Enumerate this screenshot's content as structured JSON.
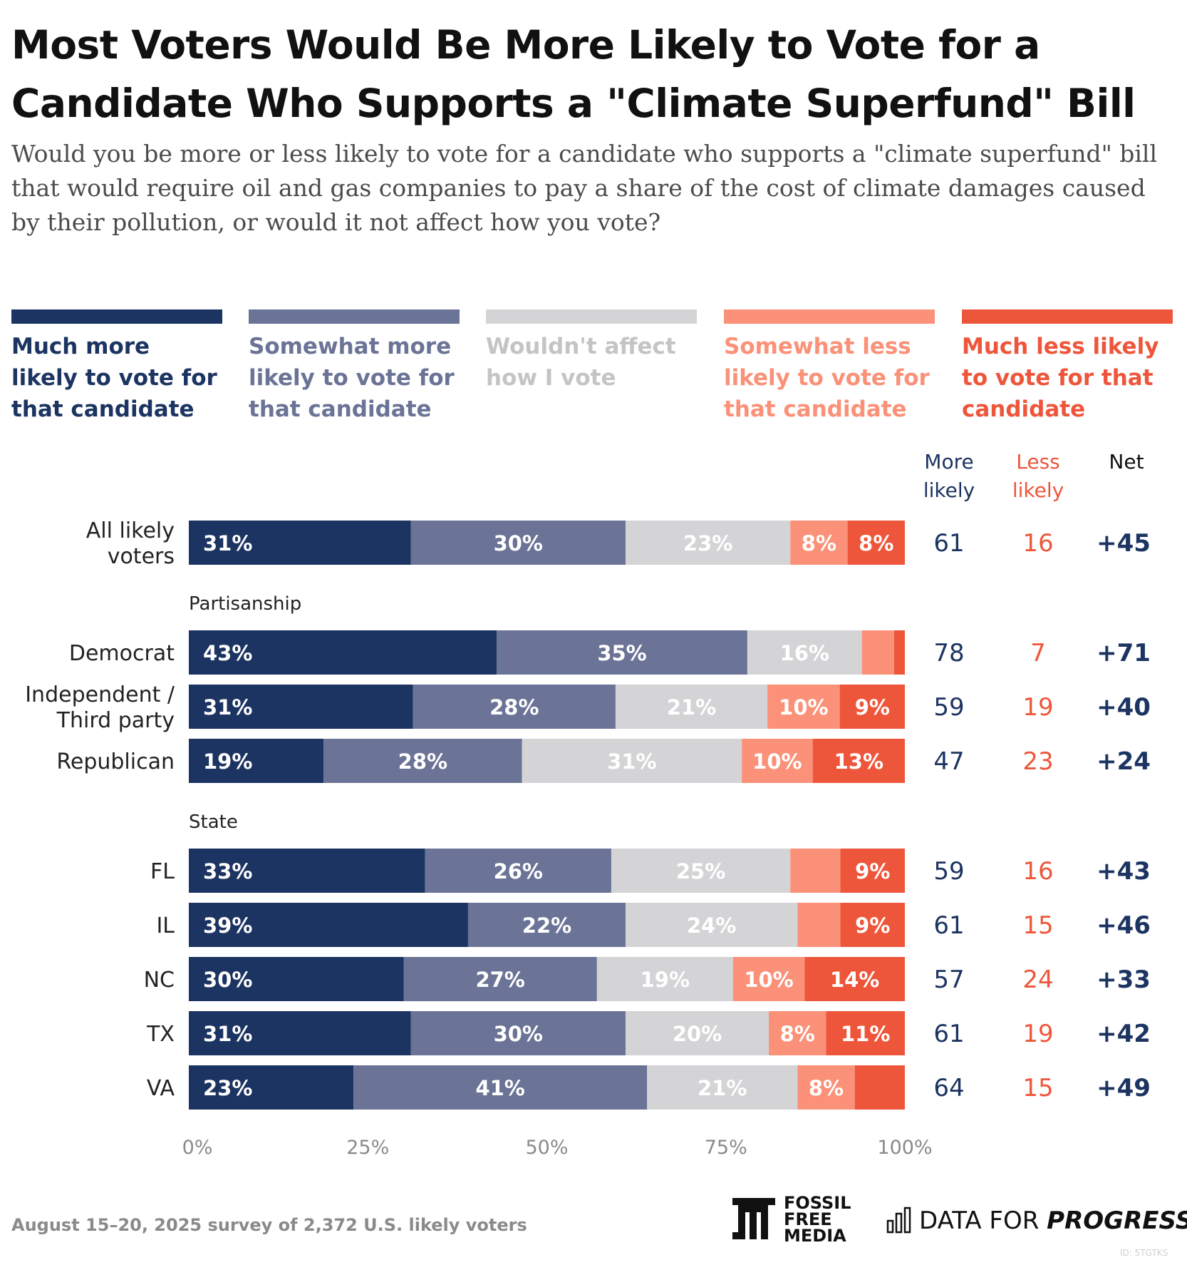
{
  "header": {
    "title": "Most Voters Would Be More Likely to Vote for a Candidate Who Supports a \"Climate Superfund\" Bill",
    "subtitle": "Would you be more or less likely to vote for a candidate who supports a \"climate superfund\" bill that would require oil and gas companies to pay a share of the cost of climate damages caused by their pollution, or would it not affect how you vote?"
  },
  "legend": [
    {
      "label": "Much more likely to vote for that candidate",
      "color": "#1c3461"
    },
    {
      "label": "Somewhat more likely to vote for that candidate",
      "color": "#6b7396"
    },
    {
      "label": "Wouldn't affect how I vote",
      "color": "#d4d4d7"
    },
    {
      "label": "Somewhat less likely to vote for that candidate",
      "color": "#fa9178"
    },
    {
      "label": "Much less likely to vote for that candidate",
      "color": "#ee563b"
    }
  ],
  "columns": {
    "more": "More likely",
    "less": "Less likely",
    "net": "Net"
  },
  "chart_data": {
    "type": "bar",
    "orientation": "horizontal-stacked-100",
    "xlim": [
      0,
      100
    ],
    "xticks": [
      "0%",
      "25%",
      "50%",
      "75%",
      "100%"
    ],
    "series": [
      {
        "name": "Much more likely to vote for that candidate"
      },
      {
        "name": "Somewhat more likely to vote for that candidate"
      },
      {
        "name": "Wouldn't affect how I vote"
      },
      {
        "name": "Somewhat less likely to vote for that candidate"
      },
      {
        "name": "Much less likely to vote for that candidate"
      }
    ],
    "groups": [
      {
        "label": "",
        "rows": [
          {
            "label": "All likely voters",
            "values": [
              31,
              30,
              23,
              8,
              8
            ],
            "labels": [
              "31%",
              "30%",
              "23%",
              "8%",
              "8%"
            ],
            "more": "61",
            "less": "16",
            "net": "+45"
          }
        ]
      },
      {
        "label": "Partisanship",
        "rows": [
          {
            "label": "Democrat",
            "values": [
              43,
              35,
              16,
              4.5,
              1.5
            ],
            "labels": [
              "43%",
              "35%",
              "16%",
              "",
              ""
            ],
            "more": "78",
            "less": "7",
            "net": "+71"
          },
          {
            "label": "Independent / Third party",
            "values": [
              31,
              28,
              21,
              10,
              9
            ],
            "labels": [
              "31%",
              "28%",
              "21%",
              "10%",
              "9%"
            ],
            "more": "59",
            "less": "19",
            "net": "+40"
          },
          {
            "label": "Republican",
            "values": [
              19,
              28,
              31,
              10,
              13
            ],
            "labels": [
              "19%",
              "28%",
              "31%",
              "10%",
              "13%"
            ],
            "more": "47",
            "less": "23",
            "net": "+24"
          }
        ]
      },
      {
        "label": "State",
        "rows": [
          {
            "label": "FL",
            "values": [
              33,
              26,
              25,
              7,
              9
            ],
            "labels": [
              "33%",
              "26%",
              "25%",
              "",
              "9%"
            ],
            "more": "59",
            "less": "16",
            "net": "+43"
          },
          {
            "label": "IL",
            "values": [
              39,
              22,
              24,
              6,
              9
            ],
            "labels": [
              "39%",
              "22%",
              "24%",
              "",
              "9%"
            ],
            "more": "61",
            "less": "15",
            "net": "+46"
          },
          {
            "label": "NC",
            "values": [
              30,
              27,
              19,
              10,
              14
            ],
            "labels": [
              "30%",
              "27%",
              "19%",
              "10%",
              "14%"
            ],
            "more": "57",
            "less": "24",
            "net": "+33"
          },
          {
            "label": "TX",
            "values": [
              31,
              30,
              20,
              8,
              11
            ],
            "labels": [
              "31%",
              "30%",
              "20%",
              "8%",
              "11%"
            ],
            "more": "61",
            "less": "19",
            "net": "+42"
          },
          {
            "label": "VA",
            "values": [
              23,
              41,
              21,
              8,
              7
            ],
            "labels": [
              "23%",
              "41%",
              "21%",
              "8%",
              ""
            ],
            "more": "64",
            "less": "15",
            "net": "+49"
          }
        ]
      }
    ]
  },
  "footer": {
    "note": "August 15–20, 2025 survey of 2,372 U.S. likely voters",
    "logo_ffm": [
      "FOSSIL",
      "FREE",
      "MEDIA"
    ],
    "logo_dfp_plain": "DATA FOR ",
    "logo_dfp_bold": "PROGRESS",
    "id": "ID: 5TGTKS"
  },
  "colors": {
    "more_text": "#1c3461",
    "less_text": "#ee563b",
    "net_text": "#1c3461",
    "axis_text": "#8a8a8a"
  }
}
